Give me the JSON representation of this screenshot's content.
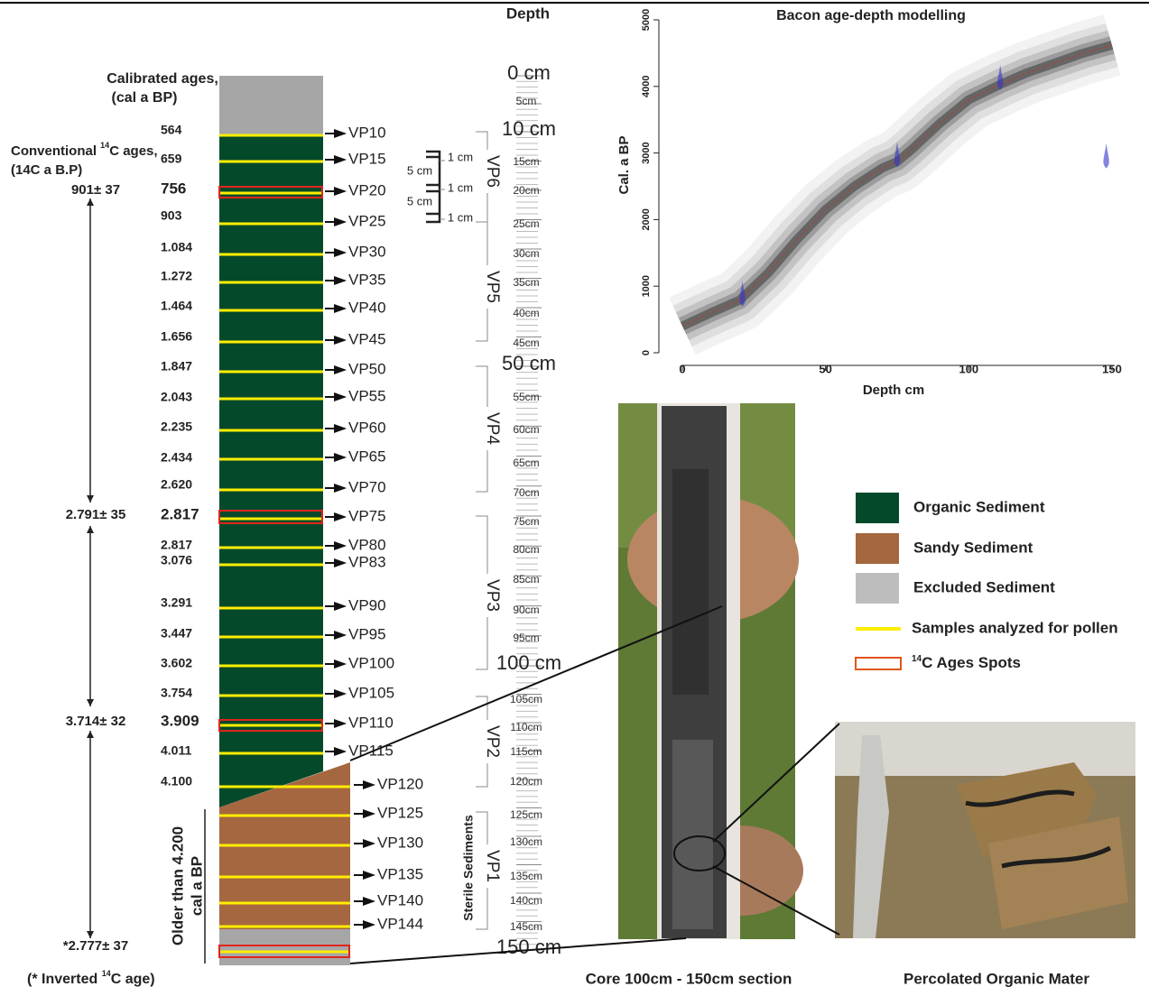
{
  "header": {
    "depth_title": "Depth"
  },
  "column": {
    "cal_title": [
      "Calibrated ages,",
      "(cal a BP)"
    ],
    "conv_title": {
      "prefix": "Conventional ",
      "sup": "14",
      "suffix": "C ages,"
    },
    "conv_subtitle": "(14C a B.P)",
    "samples": [
      "VP10",
      "VP15",
      "VP20",
      "VP25",
      "VP30",
      "VP35",
      "VP40",
      "VP45",
      "VP50",
      "VP55",
      "VP60",
      "VP65",
      "VP70",
      "VP75",
      "VP80",
      "VP83",
      "VP90",
      "VP95",
      "VP100",
      "VP105",
      "VP110",
      "VP115",
      "VP120",
      "VP125",
      "VP130",
      "VP135",
      "VP140",
      "VP144"
    ],
    "calibrated_ages": [
      "564",
      "659",
      "756",
      "903",
      "1.084",
      "1.272",
      "1.464",
      "1.656",
      "1.847",
      "2.043",
      "2.235",
      "2.434",
      "2.620",
      "2.817",
      "2.817",
      "3.076",
      "3.291",
      "3.447",
      "3.602",
      "3.754",
      "3.909",
      "4.011",
      "4.100"
    ],
    "conventional_ages": [
      "901± 37",
      "2.791± 35",
      "3.714± 32",
      "*2.777± 37"
    ],
    "older_note": [
      "Older than 4.200",
      "cal a BP"
    ],
    "footnote": {
      "prefix": "(* Inverted ",
      "sup": "14",
      "suffix": "C age)"
    }
  },
  "depth_scale": {
    "major": [
      "0 cm",
      "10 cm",
      "50 cm",
      "100 cm",
      "150 cm"
    ],
    "minor": [
      "5cm",
      "15cm",
      "20cm",
      "25cm",
      "30cm",
      "35cm",
      "40cm",
      "45cm",
      "55cm",
      "60cm",
      "65cm",
      "70cm",
      "75cm",
      "80cm",
      "85cm",
      "90cm",
      "95cm",
      "105cm",
      "110cm",
      "115cm",
      "120cm",
      "125cm",
      "130cm",
      "135cm",
      "140cm",
      "145cm"
    ],
    "sections": [
      "VP6",
      "VP5",
      "VP4",
      "VP3",
      "VP2",
      "VP1"
    ],
    "sterile": "Sterile Sediments",
    "interval_labels": [
      "1 cm",
      "1 cm",
      "1 cm"
    ],
    "spacing_labels": [
      "5 cm",
      "5 cm"
    ]
  },
  "bacon_plot": {
    "title": "Bacon age-depth modelling",
    "x_label": "Depth cm",
    "y_label": "Cal. a BP",
    "xlim": [
      -8,
      154
    ],
    "ylim": [
      0,
      5000
    ],
    "xticks": [
      0,
      50,
      100,
      150
    ],
    "yticks": [
      0,
      1000,
      2000,
      3000,
      4000,
      5000
    ],
    "model": {
      "x": [
        0,
        10,
        20,
        30,
        40,
        50,
        60,
        70,
        75,
        80,
        90,
        100,
        111,
        120,
        130,
        140,
        150
      ],
      "y": [
        400,
        600,
        790,
        1200,
        1700,
        2150,
        2500,
        2780,
        2870,
        3050,
        3450,
        3800,
        4030,
        4200,
        4350,
        4500,
        4620
      ]
    },
    "dates": {
      "x": [
        21,
        75,
        111,
        148
      ],
      "y": [
        780,
        2870,
        4030,
        2850
      ]
    }
  },
  "photos": {
    "core_caption": "Core 100cm - 150cm section",
    "sample_caption": "Percolated Organic Mater"
  },
  "legend": {
    "items": [
      {
        "label": "Organic Sediment",
        "color": "#05492b"
      },
      {
        "label": "Sandy Sediment",
        "color": "#a5673f"
      },
      {
        "label": "Excluded Sediment",
        "color": "#bdbdbd"
      },
      {
        "label": "Samples analyzed for pollen",
        "color": "#ffee00"
      }
    ],
    "spots": {
      "sup": "14",
      "suffix": "C Ages Spots",
      "color": "#e0541c"
    }
  }
}
